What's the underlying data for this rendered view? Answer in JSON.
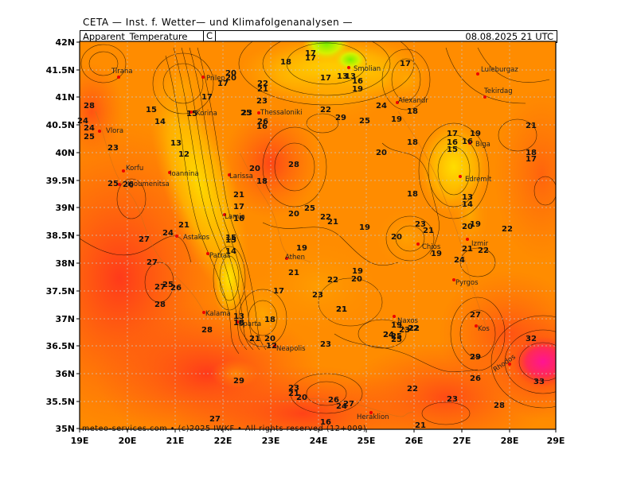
{
  "header": {
    "line": "CETA — Inst. f. Wetter— und Klimafolgenanalysen —",
    "parameter": "Apparent_Temperature",
    "unit": "C",
    "valid_time": "08.08.2025  21 UTC"
  },
  "axes": {
    "lat_ticks": [
      "42N",
      "41.5N",
      "41N",
      "40.5N",
      "40N",
      "39.5N",
      "39N",
      "38.5N",
      "38N",
      "37.5N",
      "37N",
      "36.5N",
      "36N",
      "35.5N",
      "35N"
    ],
    "lon_ticks": [
      "19E",
      "20E",
      "21E",
      "22E",
      "23E",
      "24E",
      "25E",
      "26E",
      "27E",
      "28E",
      "29E"
    ]
  },
  "cities": [
    "Tirana",
    "Prilep",
    "Korina",
    "Thessaloniki",
    "Smolian",
    "Luleburgaz",
    "Tekirdag",
    "Alexandr",
    "Vlora",
    "Biga",
    "Korfu",
    "Igoumenitsa",
    "Ioannina",
    "Larissa",
    "Edremit",
    "Lamia",
    "Astakos",
    "Patras",
    "Athen",
    "Chios",
    "Izmir",
    "Pyrgos",
    "Kalama",
    "Sparta",
    "Neapolis",
    "Naxos",
    "Kos",
    "Rhodos",
    "Heraklion"
  ],
  "values": [
    "17",
    "17",
    "18",
    "17",
    "17",
    "13",
    "13",
    "16",
    "19",
    "17",
    "20",
    "20",
    "17",
    "22",
    "21",
    "24",
    "19",
    "18",
    "23",
    "25",
    "26",
    "16",
    "22",
    "25",
    "29",
    "24",
    "28",
    "25",
    "15",
    "24",
    "23",
    "14",
    "13",
    "12",
    "15",
    "23",
    "20",
    "28",
    "20",
    "18",
    "18",
    "16",
    "17",
    "15",
    "19",
    "16",
    "18",
    "17",
    "21",
    "25",
    "26",
    "27",
    "20",
    "18",
    "17",
    "22",
    "21",
    "21",
    "23",
    "25",
    "22",
    "20",
    "21",
    "16",
    "27",
    "24",
    "15",
    "20",
    "19",
    "21",
    "19",
    "22",
    "19",
    "13",
    "14",
    "20",
    "19",
    "22",
    "21",
    "15",
    "14",
    "17",
    "21",
    "19",
    "27",
    "25",
    "26",
    "28",
    "13",
    "18",
    "20",
    "21",
    "22",
    "23",
    "21",
    "24",
    "19",
    "23",
    "24",
    "29",
    "26",
    "23",
    "29",
    "27",
    "28",
    "28",
    "33",
    "32",
    "27",
    "21",
    "23",
    "20",
    "26",
    "24",
    "22",
    "27",
    "16",
    "18",
    "21",
    "23",
    "24",
    "25",
    "21",
    "29",
    "22",
    "25",
    "12"
  ],
  "colors": {
    "field_low": "#ffe600",
    "field_mid": "#ff8a00",
    "field_high": "#ff1493",
    "field_green": "#7cf000",
    "contour": "#000000",
    "grid": "#cccccc"
  },
  "footer": "meteo-services.com  •  (c)2025  IWKF  •  All rights reserved  (12+009)"
}
